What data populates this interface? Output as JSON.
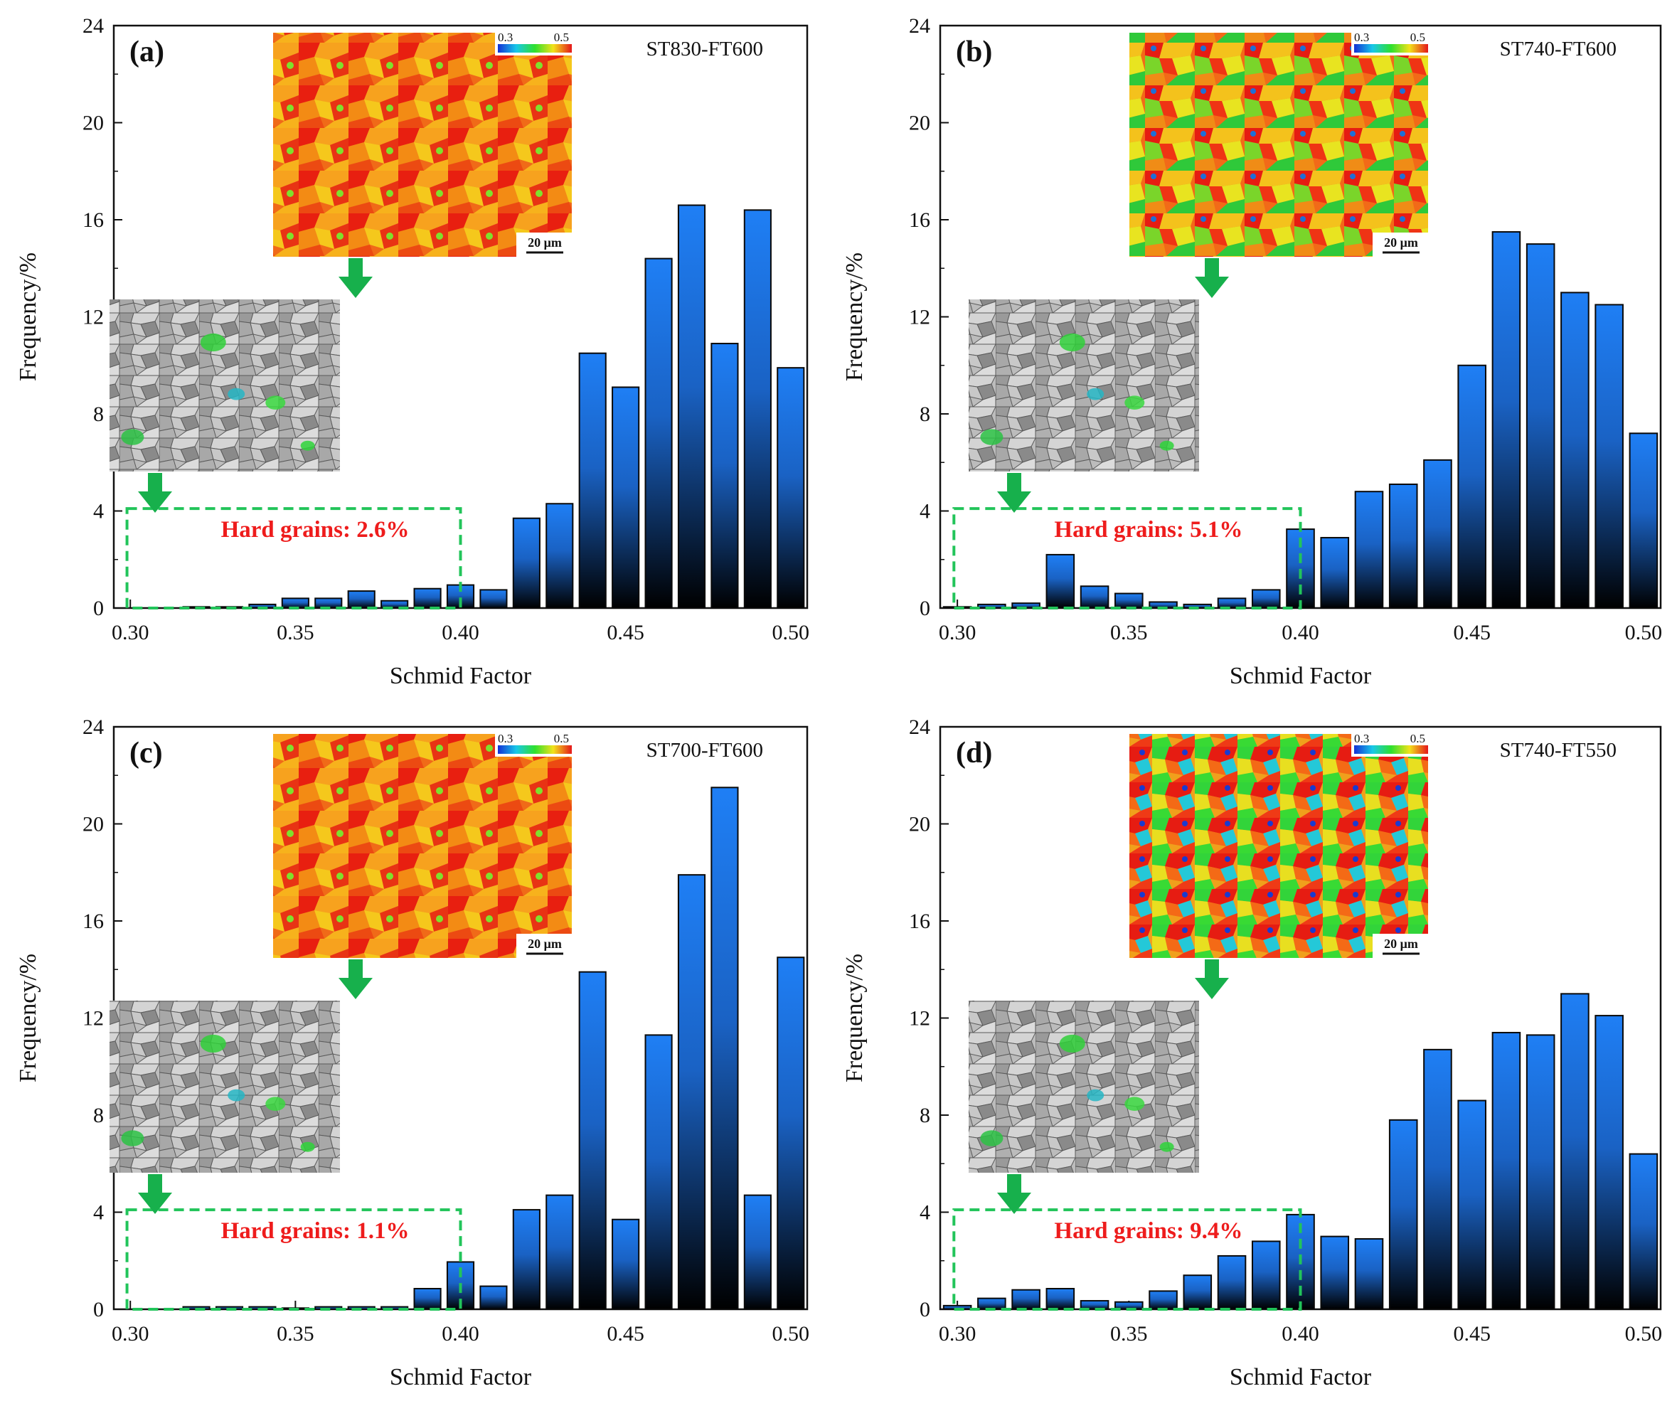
{
  "chart_data": [
    {
      "type": "bar",
      "panel_label": "(a)",
      "sample": "ST830-FT600",
      "xlabel": "Schmid Factor",
      "ylabel": "Frequency/%",
      "xlim": [
        0.295,
        0.505
      ],
      "ylim": [
        0,
        24
      ],
      "xticks": [
        "0.30",
        "0.35",
        "0.40",
        "0.45",
        "0.50"
      ],
      "yticks": [
        "0",
        "4",
        "8",
        "12",
        "16",
        "20",
        "24"
      ],
      "x": [
        0.3,
        0.31,
        0.32,
        0.33,
        0.34,
        0.35,
        0.36,
        0.37,
        0.38,
        0.39,
        0.4,
        0.41,
        0.42,
        0.43,
        0.44,
        0.45,
        0.46,
        0.47,
        0.48,
        0.49,
        0.5
      ],
      "values": [
        0.0,
        0.0,
        0.05,
        0.05,
        0.15,
        0.4,
        0.4,
        0.7,
        0.3,
        0.8,
        0.95,
        0.75,
        3.7,
        4.3,
        10.5,
        9.1,
        14.4,
        16.6,
        10.9,
        16.4,
        9.9
      ],
      "hard_grains_text": "Hard grains: 2.6%",
      "colorbar_ticks": [
        "0.3",
        "0.5"
      ],
      "scale_bar": "20 μm"
    },
    {
      "type": "bar",
      "panel_label": "(b)",
      "sample": "ST740-FT600",
      "xlabel": "Schmid Factor",
      "ylabel": "Frequency/%",
      "xlim": [
        0.295,
        0.505
      ],
      "ylim": [
        0,
        24
      ],
      "xticks": [
        "0.30",
        "0.35",
        "0.40",
        "0.45",
        "0.50"
      ],
      "yticks": [
        "0",
        "4",
        "8",
        "12",
        "16",
        "20",
        "24"
      ],
      "x": [
        0.3,
        0.31,
        0.32,
        0.33,
        0.34,
        0.35,
        0.36,
        0.37,
        0.38,
        0.39,
        0.4,
        0.41,
        0.42,
        0.43,
        0.44,
        0.45,
        0.46,
        0.47,
        0.48,
        0.49,
        0.5
      ],
      "values": [
        0.05,
        0.15,
        0.2,
        2.2,
        0.9,
        0.6,
        0.25,
        0.15,
        0.4,
        0.75,
        3.25,
        2.9,
        4.8,
        5.1,
        6.1,
        10.0,
        15.5,
        15.0,
        13.0,
        12.5,
        7.2
      ],
      "hard_grains_text": "Hard grains: 5.1%",
      "colorbar_ticks": [
        "0.3",
        "0.5"
      ],
      "scale_bar": "20 μm"
    },
    {
      "type": "bar",
      "panel_label": "(c)",
      "sample": "ST700-FT600",
      "xlabel": "Schmid Factor",
      "ylabel": "Frequency/%",
      "xlim": [
        0.295,
        0.505
      ],
      "ylim": [
        0,
        24
      ],
      "xticks": [
        "0.30",
        "0.35",
        "0.40",
        "0.45",
        "0.50"
      ],
      "yticks": [
        "0",
        "4",
        "8",
        "12",
        "16",
        "20",
        "24"
      ],
      "x": [
        0.3,
        0.31,
        0.32,
        0.33,
        0.34,
        0.35,
        0.36,
        0.37,
        0.38,
        0.39,
        0.4,
        0.41,
        0.42,
        0.43,
        0.44,
        0.45,
        0.46,
        0.47,
        0.48,
        0.49,
        0.5
      ],
      "values": [
        0.0,
        0.0,
        0.1,
        0.1,
        0.1,
        0.05,
        0.1,
        0.1,
        0.1,
        0.85,
        1.95,
        0.95,
        4.1,
        4.7,
        13.9,
        3.7,
        11.3,
        17.9,
        21.5,
        4.7,
        14.5
      ],
      "hard_grains_text": "Hard grains: 1.1%",
      "colorbar_ticks": [
        "0.3",
        "0.5"
      ],
      "scale_bar": "20 μm"
    },
    {
      "type": "bar",
      "panel_label": "(d)",
      "sample": "ST740-FT550",
      "xlabel": "Schmid Factor",
      "ylabel": "Frequency/%",
      "xlim": [
        0.295,
        0.505
      ],
      "ylim": [
        0,
        24
      ],
      "xticks": [
        "0.30",
        "0.35",
        "0.40",
        "0.45",
        "0.50"
      ],
      "yticks": [
        "0",
        "4",
        "8",
        "12",
        "16",
        "20",
        "24"
      ],
      "x": [
        0.3,
        0.31,
        0.32,
        0.33,
        0.34,
        0.35,
        0.36,
        0.37,
        0.38,
        0.39,
        0.4,
        0.41,
        0.42,
        0.43,
        0.44,
        0.45,
        0.46,
        0.47,
        0.48,
        0.49,
        0.5
      ],
      "values": [
        0.15,
        0.45,
        0.8,
        0.85,
        0.35,
        0.3,
        0.75,
        1.4,
        2.2,
        2.8,
        3.9,
        3.0,
        2.9,
        7.8,
        10.7,
        8.6,
        11.4,
        11.3,
        13.0,
        12.1,
        6.4
      ],
      "hard_grains_text": "Hard grains: 9.4%",
      "colorbar_ticks": [
        "0.3",
        "0.5"
      ],
      "scale_bar": "20 μm"
    }
  ],
  "colors": {
    "bar_top": "#1f7ff5",
    "bar_bottom": "#000000",
    "bar_edge": "#0a0a0a",
    "hard_box": "#22c45a",
    "arrow": "#17b04c",
    "hard_text": "#ee1c1c"
  }
}
